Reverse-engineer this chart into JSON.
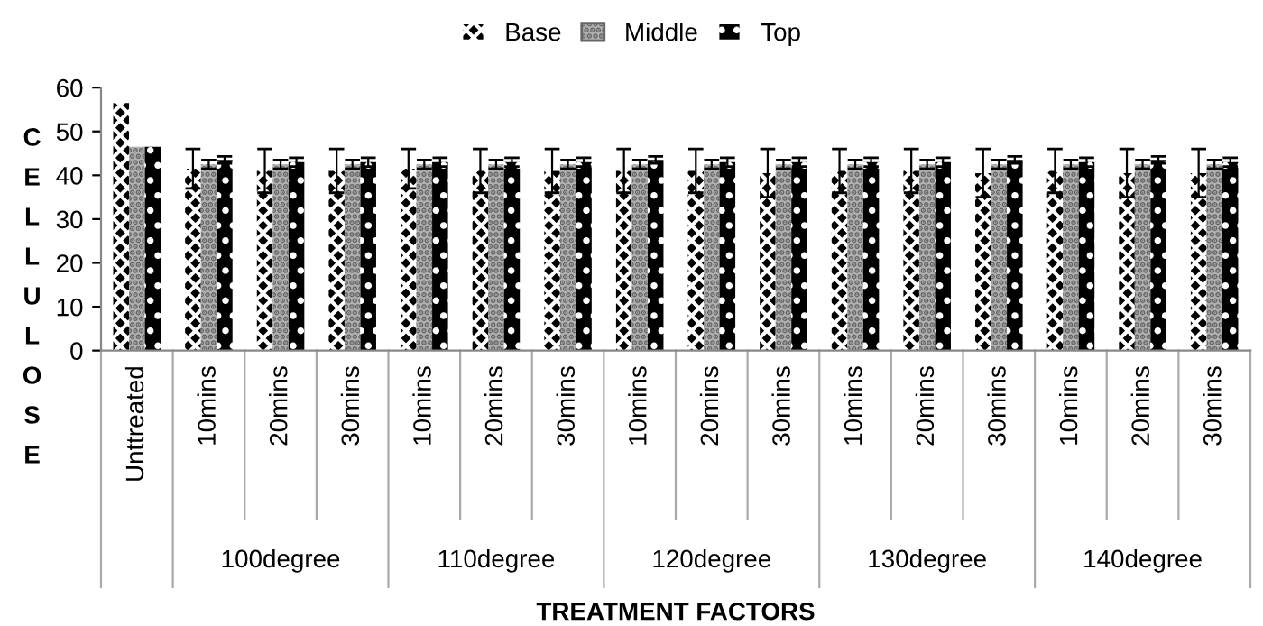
{
  "chart_data": {
    "type": "bar",
    "xlabel": "TREATMENT FACTORS",
    "ylabel": "CELLULOSE",
    "categories": [
      "Unttreated",
      "10mins",
      "20mins",
      "30mins",
      "10mins",
      "20mins",
      "30mins",
      "10mins",
      "20mins",
      "30mins",
      "10mins",
      "20mins",
      "30mins",
      "10mins",
      "20mins",
      "30mins"
    ],
    "annotations": [
      "100degree",
      "110degree",
      "120degree",
      "130degree",
      "140degree"
    ],
    "series": [
      {
        "name": "Base",
        "color": "#000000",
        "values": [
          56.5,
          41.5,
          41,
          41,
          41.5,
          41,
          41,
          41,
          41,
          40.5,
          41,
          41,
          40.5,
          41,
          40.5,
          40.5
        ],
        "errors": [
          null,
          4.5,
          5,
          5,
          4.5,
          5,
          5,
          5,
          5,
          5.5,
          5,
          5,
          5.5,
          5,
          5.5,
          5.5
        ]
      },
      {
        "name": "Middle",
        "color": "#b0b0b0",
        "values": [
          46.5,
          42.5,
          42.5,
          42.5,
          42.5,
          42.5,
          42.5,
          42.5,
          42.5,
          42.5,
          42.5,
          42.5,
          42.5,
          42.5,
          42.5,
          42.5
        ],
        "errors": [
          null,
          1,
          1,
          1,
          1,
          1,
          1,
          1,
          1,
          1,
          1,
          1,
          1,
          1,
          1,
          1
        ]
      },
      {
        "name": "Top",
        "color": "#000000",
        "values": [
          46.5,
          43.5,
          43,
          43,
          43,
          43,
          43,
          43.5,
          43,
          43,
          43,
          43,
          43.5,
          43,
          43.5,
          43
        ],
        "errors": [
          null,
          0.8,
          1,
          1,
          1,
          1,
          1,
          0.8,
          1,
          1,
          1,
          1,
          0.8,
          1,
          0.8,
          1
        ]
      }
    ],
    "ylim": [
      0,
      60
    ],
    "yticks": [
      0,
      10,
      20,
      30,
      40,
      50,
      60
    ],
    "grid": false,
    "legend": "top"
  }
}
